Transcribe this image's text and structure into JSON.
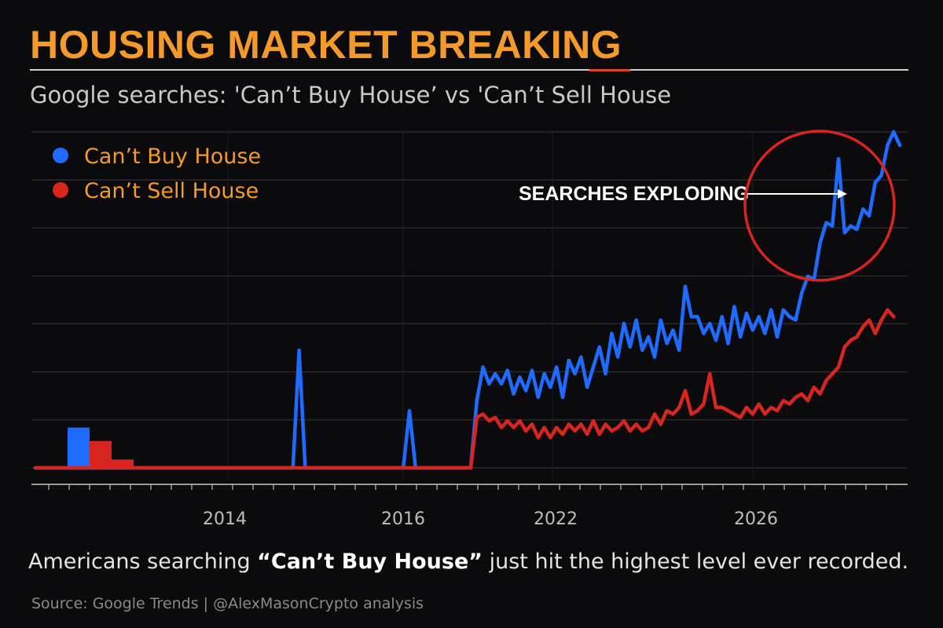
{
  "headline": "HOUSING MARKET BREAKING",
  "subtitle": "Google searches: 'Can’t Buy House’ vs 'Can’t Sell House",
  "caption": {
    "before": "Americans searching ",
    "quoted": "“Can’t Buy House”",
    "after": " just hit the highest level ever recorded."
  },
  "source": "Source: Google Trends | @AlexMasonCrypto analysis",
  "colors": {
    "accent": "#f39a2b",
    "buy": "#1f6bff",
    "sell": "#d8251f",
    "annotation_circle": "#d8251f"
  },
  "chart_data": {
    "type": "line",
    "annotation": "SEARCHES EXPLODING",
    "x_ticks": [
      "2014",
      "2016",
      "2022",
      "2026"
    ],
    "grid": true,
    "legend": "top-left",
    "ylim": [
      0,
      100
    ],
    "y_tick_values": [
      0,
      14.3,
      28.6,
      42.9,
      57.1,
      71.4,
      85.7,
      100
    ],
    "initial_bars": {
      "buy": 12,
      "sell": 8,
      "sell_small": 2.5
    },
    "series": [
      {
        "name": "Can’t Buy House",
        "color": "#1f6bff",
        "points": [
          [
            0,
            0
          ],
          [
            26,
            0
          ],
          [
            27,
            35
          ],
          [
            28,
            0
          ],
          [
            44,
            0
          ],
          [
            45,
            17
          ],
          [
            46,
            0
          ],
          [
            54,
            0
          ],
          [
            55,
            0
          ],
          [
            56,
            20
          ],
          [
            57,
            30
          ],
          [
            58,
            25
          ],
          [
            59,
            28
          ],
          [
            60,
            25
          ],
          [
            61,
            29
          ],
          [
            62,
            22
          ],
          [
            63,
            27
          ],
          [
            64,
            23
          ],
          [
            65,
            29
          ],
          [
            66,
            21
          ],
          [
            67,
            28
          ],
          [
            68,
            24
          ],
          [
            69,
            30
          ],
          [
            70,
            21
          ],
          [
            71,
            32
          ],
          [
            72,
            28
          ],
          [
            73,
            33
          ],
          [
            74,
            24
          ],
          [
            75,
            30
          ],
          [
            76,
            36
          ],
          [
            77,
            28
          ],
          [
            78,
            40
          ],
          [
            79,
            33
          ],
          [
            80,
            43
          ],
          [
            81,
            36
          ],
          [
            82,
            44
          ],
          [
            83,
            35
          ],
          [
            84,
            39
          ],
          [
            85,
            33
          ],
          [
            86,
            44
          ],
          [
            87,
            37
          ],
          [
            88,
            41
          ],
          [
            89,
            35
          ],
          [
            90,
            54
          ],
          [
            91,
            45
          ],
          [
            92,
            45
          ],
          [
            93,
            40
          ],
          [
            94,
            43
          ],
          [
            95,
            38
          ],
          [
            96,
            45
          ],
          [
            97,
            37
          ],
          [
            98,
            48
          ],
          [
            99,
            39
          ],
          [
            100,
            46
          ],
          [
            101,
            41
          ],
          [
            102,
            45
          ],
          [
            103,
            40
          ],
          [
            104,
            47
          ],
          [
            105,
            39
          ],
          [
            106,
            47
          ],
          [
            107,
            45
          ],
          [
            108,
            44
          ],
          [
            109,
            52
          ],
          [
            110,
            57
          ],
          [
            111,
            56
          ],
          [
            112,
            67
          ],
          [
            113,
            73
          ],
          [
            114,
            72
          ],
          [
            115,
            92
          ],
          [
            116,
            70
          ],
          [
            117,
            72
          ],
          [
            118,
            71
          ],
          [
            119,
            77
          ],
          [
            120,
            75
          ],
          [
            121,
            85
          ],
          [
            122,
            87
          ],
          [
            123,
            96
          ],
          [
            124,
            100
          ],
          [
            125,
            96
          ]
        ]
      },
      {
        "name": "Can’t Sell House",
        "color": "#d8251f",
        "points": [
          [
            0,
            0
          ],
          [
            55,
            0
          ],
          [
            56,
            15
          ],
          [
            57,
            16
          ],
          [
            58,
            14
          ],
          [
            59,
            15
          ],
          [
            60,
            12
          ],
          [
            61,
            14
          ],
          [
            62,
            12
          ],
          [
            63,
            14
          ],
          [
            64,
            11
          ],
          [
            65,
            13
          ],
          [
            66,
            9
          ],
          [
            67,
            12
          ],
          [
            68,
            9
          ],
          [
            69,
            12
          ],
          [
            70,
            10
          ],
          [
            71,
            13
          ],
          [
            72,
            11
          ],
          [
            73,
            13
          ],
          [
            74,
            10
          ],
          [
            75,
            14
          ],
          [
            76,
            10
          ],
          [
            77,
            13
          ],
          [
            78,
            11
          ],
          [
            79,
            12
          ],
          [
            80,
            14
          ],
          [
            81,
            11
          ],
          [
            82,
            13
          ],
          [
            83,
            11
          ],
          [
            84,
            12
          ],
          [
            85,
            16
          ],
          [
            86,
            13
          ],
          [
            87,
            17
          ],
          [
            88,
            16
          ],
          [
            89,
            18
          ],
          [
            90,
            23
          ],
          [
            91,
            16
          ],
          [
            92,
            17
          ],
          [
            93,
            19
          ],
          [
            94,
            28
          ],
          [
            95,
            18
          ],
          [
            96,
            18
          ],
          [
            97,
            17
          ],
          [
            98,
            16
          ],
          [
            99,
            15
          ],
          [
            100,
            18
          ],
          [
            101,
            16
          ],
          [
            102,
            19
          ],
          [
            103,
            16
          ],
          [
            104,
            18
          ],
          [
            105,
            17
          ],
          [
            106,
            20
          ],
          [
            107,
            19
          ],
          [
            108,
            21
          ],
          [
            109,
            22
          ],
          [
            110,
            20
          ],
          [
            111,
            24
          ],
          [
            112,
            22
          ],
          [
            113,
            26
          ],
          [
            114,
            28
          ],
          [
            115,
            30
          ],
          [
            116,
            36
          ],
          [
            117,
            38
          ],
          [
            118,
            39
          ],
          [
            119,
            42
          ],
          [
            120,
            44
          ],
          [
            121,
            40
          ],
          [
            122,
            44
          ],
          [
            123,
            47
          ],
          [
            124,
            45
          ]
        ]
      }
    ]
  }
}
